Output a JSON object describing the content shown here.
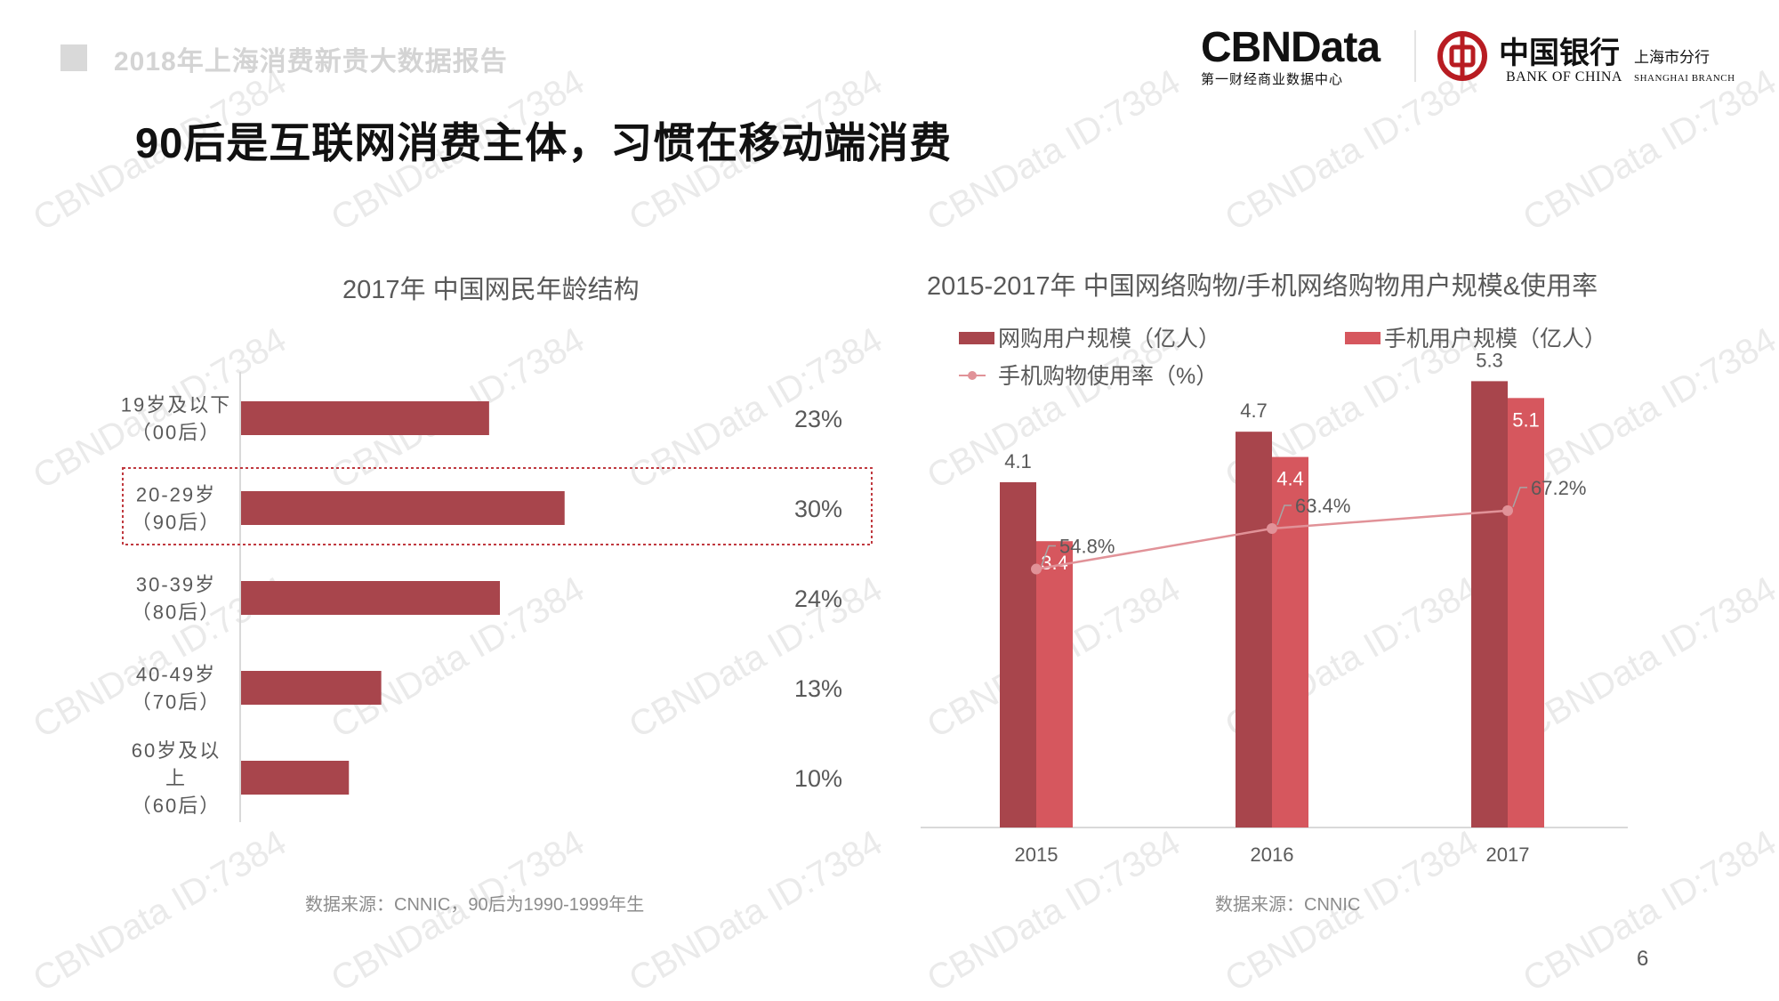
{
  "header": {
    "report_title": "2018年上海消费新贵大数据报告",
    "page_title": "90后是互联网消费主体，习惯在移动端消费",
    "cbn_logo_main": "CBNData",
    "cbn_logo_sub": "第一财经商业数据中心",
    "boc_logo_cn": "中国银行",
    "boc_logo_en": "BANK OF CHINA",
    "boc_branch_cn": "上海市分行",
    "boc_branch_en": "SHANGHAI  BRANCH"
  },
  "watermark": "CBNData ID:7384",
  "page_number": "6",
  "colors": {
    "dark_red": "#a8454c",
    "light_red": "#d6575e",
    "line_pink": "#e19298",
    "highlight_border": "#c0393f"
  },
  "chart_data": [
    {
      "type": "bar",
      "orientation": "horizontal",
      "title": "2017年 中国网民年龄结构",
      "categories": [
        [
          "19岁及以下",
          "（00后）"
        ],
        [
          "20-29岁",
          "（90后）"
        ],
        [
          "30-39岁",
          "（80后）"
        ],
        [
          "40-49岁",
          "（70后）"
        ],
        [
          "60岁及以",
          "上",
          "（60后）"
        ]
      ],
      "values": [
        23,
        30,
        24,
        13,
        10
      ],
      "value_labels": [
        "23%",
        "30%",
        "24%",
        "13%",
        "10%"
      ],
      "highlight_index": 1,
      "xlim": [
        0,
        40
      ],
      "source": "数据来源：CNNIC，90后为1990-1999年生"
    },
    {
      "type": "bar",
      "title": "2015-2017年 中国网络购物/手机网络购物用户规模&使用率",
      "categories": [
        "2015",
        "2016",
        "2017"
      ],
      "series": [
        {
          "name": "网购用户规模（亿人）",
          "type": "bar",
          "values": [
            4.1,
            4.7,
            5.3
          ],
          "labels": [
            "4.1",
            "4.7",
            "5.3"
          ]
        },
        {
          "name": "手机用户规模（亿人）",
          "type": "bar",
          "values": [
            3.4,
            4.4,
            5.1
          ],
          "labels": [
            "3.4",
            "4.4",
            "5.1"
          ]
        },
        {
          "name": "手机购物使用率（%）",
          "type": "line",
          "values": [
            54.8,
            63.4,
            67.2
          ],
          "labels": [
            "54.8%",
            "63.4%",
            "67.2%"
          ]
        }
      ],
      "ylim": [
        0,
        5.6
      ],
      "y2lim": [
        0,
        100
      ],
      "legend_position": "top",
      "source": "数据来源：CNNIC"
    }
  ]
}
